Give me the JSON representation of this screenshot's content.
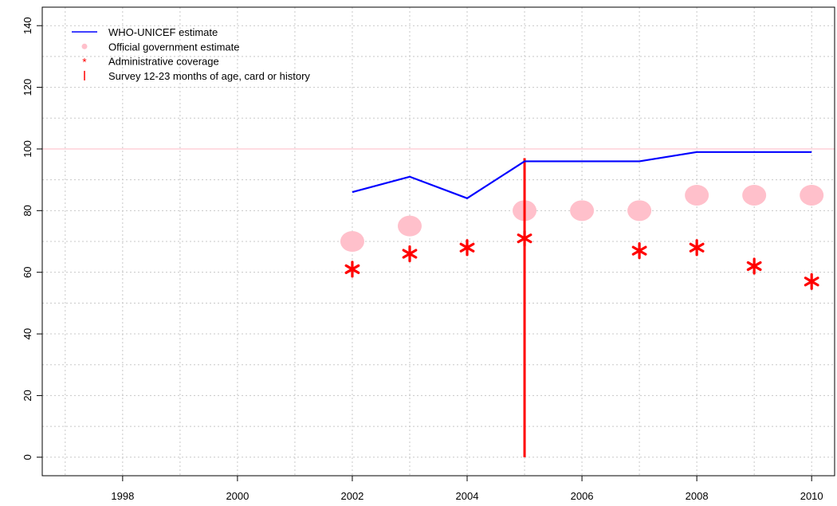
{
  "chart_data": {
    "type": "line",
    "title": "",
    "xlabel": "",
    "ylabel": "",
    "xlim": [
      1996.6,
      2010.4
    ],
    "ylim": [
      -6,
      146
    ],
    "grid": true,
    "x_ticks": [
      1998,
      2000,
      2002,
      2004,
      2006,
      2008,
      2010
    ],
    "y_ticks": [
      0,
      20,
      40,
      60,
      80,
      100,
      120,
      140
    ],
    "reference_line": {
      "y": 100,
      "color": "#ffc0cb"
    },
    "legend": {
      "placement": "top-left",
      "entries": [
        {
          "label": "WHO-UNICEF estimate",
          "symbol": "line",
          "color": "#0000ff"
        },
        {
          "label": "Official government estimate",
          "symbol": "circle",
          "color": "#ffc0cb"
        },
        {
          "label": "Administrative coverage",
          "symbol": "asterisk",
          "color": "#ff0000"
        },
        {
          "label": "Survey 12-23 months of age, card or history",
          "symbol": "vbar",
          "color": "#ff0000"
        }
      ]
    },
    "series": [
      {
        "name": "WHO-UNICEF estimate",
        "kind": "line",
        "color": "#0000ff",
        "x": [
          2002,
          2003,
          2004,
          2005,
          2006,
          2007,
          2008,
          2009,
          2010
        ],
        "values": [
          86,
          91,
          84,
          96,
          96,
          96,
          99,
          99,
          99
        ]
      },
      {
        "name": "Official government estimate",
        "kind": "circle",
        "color": "#ffc0cb",
        "x": [
          2002,
          2003,
          2004,
          2005,
          2006,
          2007,
          2008,
          2009,
          2010
        ],
        "values": [
          70,
          75,
          null,
          80,
          80,
          80,
          85,
          85,
          85
        ]
      },
      {
        "name": "Administrative coverage",
        "kind": "asterisk",
        "color": "#ff0000",
        "x": [
          2002,
          2003,
          2004,
          2005,
          2006,
          2007,
          2008,
          2009,
          2010
        ],
        "values": [
          61,
          66,
          68,
          71,
          null,
          67,
          68,
          62,
          57
        ]
      },
      {
        "name": "Survey 12-23 months of age, card or history",
        "kind": "vbar",
        "color": "#ff0000",
        "x": [
          2005
        ],
        "values": [
          97
        ]
      }
    ]
  }
}
